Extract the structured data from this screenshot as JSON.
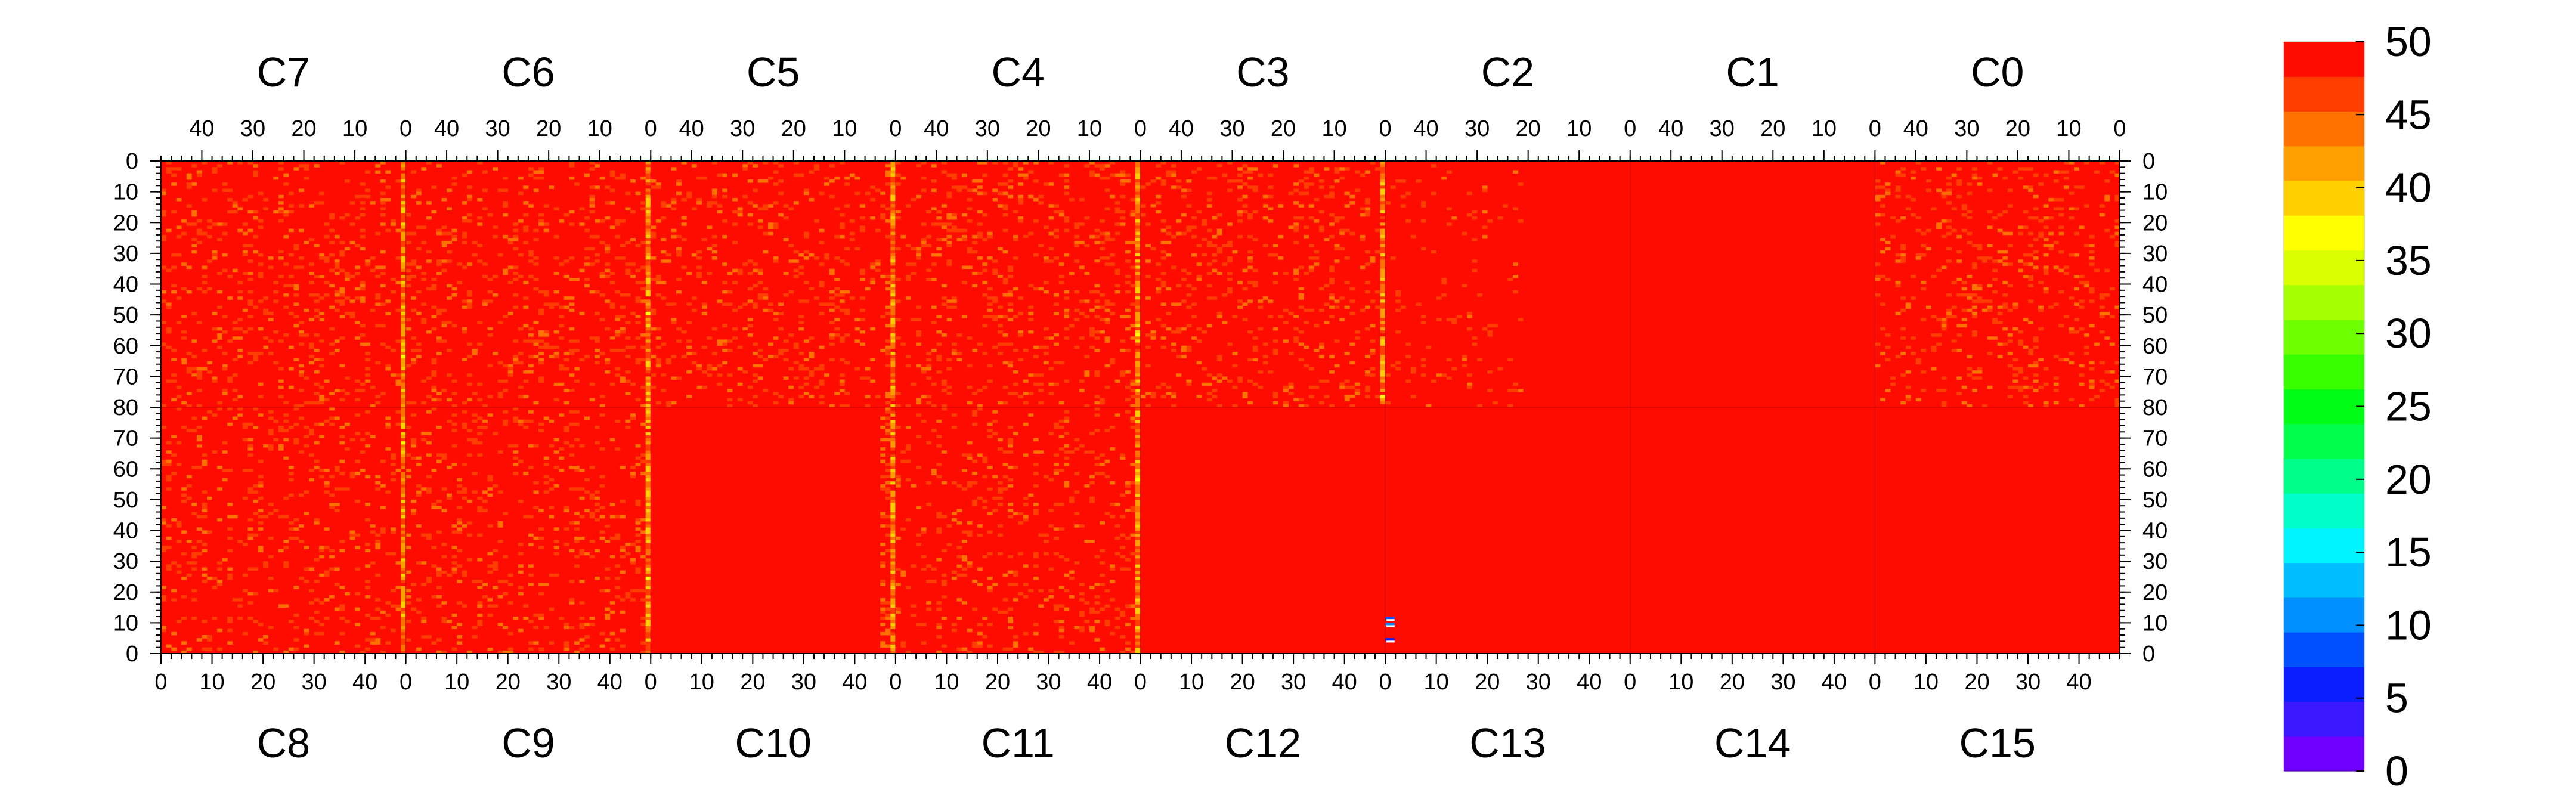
{
  "chart_data": {
    "type": "heatmap",
    "title": "",
    "xlabel": "",
    "ylabel": "",
    "grid": false,
    "legend": "colorbar-right",
    "top_modules": [
      "C7",
      "C6",
      "C5",
      "C4",
      "C3",
      "C2",
      "C1",
      "C0"
    ],
    "bottom_modules": [
      "C8",
      "C9",
      "C10",
      "C11",
      "C12",
      "C13",
      "C14",
      "C15"
    ],
    "module_columns": 48,
    "module_rows": 80,
    "top_x_ticks": [
      40,
      30,
      20,
      10,
      0
    ],
    "bottom_x_ticks": [
      0,
      10,
      20,
      30,
      40
    ],
    "top_y_ticks": [
      0,
      10,
      20,
      30,
      40,
      50,
      60,
      70,
      80
    ],
    "bottom_y_ticks": [
      80,
      70,
      60,
      50,
      40,
      30,
      20,
      10,
      0
    ],
    "zlim": [
      0,
      50
    ],
    "colorbar_ticks": [
      0,
      5,
      10,
      15,
      20,
      25,
      30,
      35,
      40,
      45,
      50
    ],
    "colorbar_colors": [
      "#7000ff",
      "#3a18ff",
      "#0a1eff",
      "#0050ff",
      "#0090ff",
      "#00beff",
      "#00f4ff",
      "#00ffc8",
      "#00ff8a",
      "#00ff4a",
      "#00ff14",
      "#38ff00",
      "#6eff00",
      "#a4ff00",
      "#daff00",
      "#ffff00",
      "#ffd000",
      "#ffa000",
      "#ff7200",
      "#ff3e00",
      "#ff0c00"
    ],
    "typical_value": 49,
    "hot_columns": [
      {
        "module": "C7",
        "column": 0,
        "note": "edge column, values ~41-48"
      },
      {
        "module": "C6",
        "column": 0,
        "note": "edge column, values ~41-48"
      },
      {
        "module": "C5",
        "column": 0,
        "note": "edge column, values ~38-47"
      },
      {
        "module": "C4",
        "column": 0,
        "note": "edge column, values ~40-47"
      },
      {
        "module": "C3",
        "column": 0,
        "note": "edge column, values ~42-48"
      },
      {
        "module": "C8",
        "column": 47,
        "note": "edge column, values ~41-48"
      },
      {
        "module": "C9",
        "column": 47,
        "note": "edge column, values ~41-48"
      },
      {
        "module": "C10",
        "column": 47,
        "note": "edge column, values ~38-47"
      },
      {
        "module": "C11",
        "column": 47,
        "note": "edge column, values ~42-48"
      }
    ],
    "low_value_pixels": [
      {
        "module": "C13",
        "column": 0,
        "row": 11,
        "value": 8
      },
      {
        "module": "C13",
        "column": 0,
        "row": 9,
        "value": 10
      },
      {
        "module": "C13",
        "column": 0,
        "row": 4,
        "value": 6
      }
    ]
  }
}
